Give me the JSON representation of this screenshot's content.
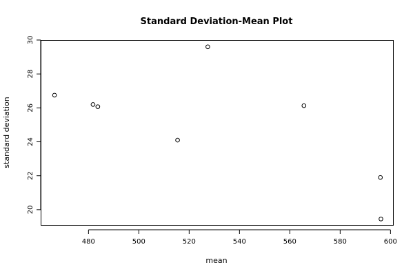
{
  "chart_data": {
    "type": "scatter",
    "title": "Standard Deviation-Mean Plot",
    "xlabel": "mean",
    "ylabel": "standard deviation",
    "xlim": [
      461,
      601
    ],
    "ylim": [
      19.1,
      30.0
    ],
    "x_ticks": [
      "480",
      "500",
      "520",
      "540",
      "560",
      "580",
      "600"
    ],
    "y_ticks": [
      "20",
      "22",
      "24",
      "26",
      "28",
      "30"
    ],
    "grid": false,
    "marker": "open-circle",
    "points": [
      {
        "x": 466.5,
        "y": 26.75
      },
      {
        "x": 481.8,
        "y": 26.2
      },
      {
        "x": 483.7,
        "y": 26.07
      },
      {
        "x": 515.4,
        "y": 24.1
      },
      {
        "x": 527.4,
        "y": 29.6
      },
      {
        "x": 565.6,
        "y": 26.13
      },
      {
        "x": 596.0,
        "y": 21.9
      },
      {
        "x": 596.2,
        "y": 19.45
      }
    ]
  }
}
